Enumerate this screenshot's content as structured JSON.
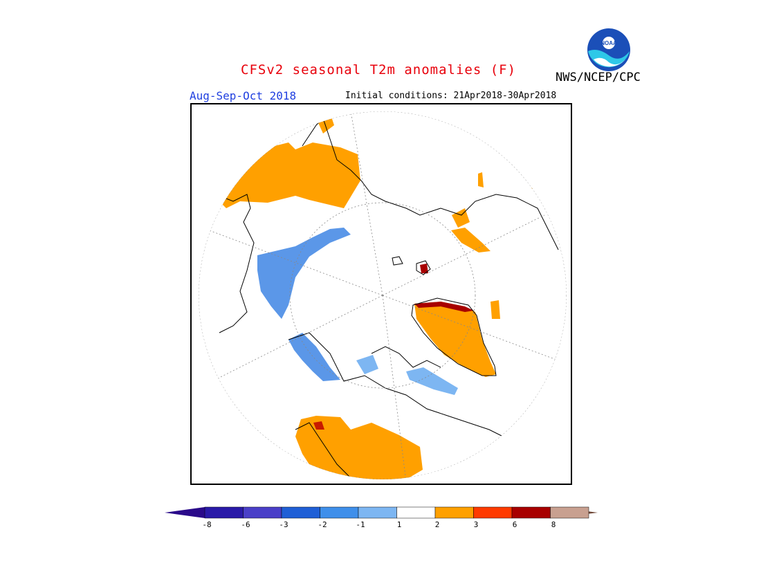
{
  "header": {
    "title": "CFSv2 seasonal T2m anomalies (F)",
    "agency": "NWS/NCEP/CPC",
    "season": "Aug-Sep-Oct 2018",
    "initial_conditions": "Initial conditions: 21Apr2018-30Apr2018",
    "logo_text": "NOAA"
  },
  "colorbar": {
    "labels": [
      "-8",
      "-6",
      "-3",
      "-2",
      "-1",
      "1",
      "2",
      "3",
      "6",
      "8"
    ],
    "colors": [
      "#2a1aa8",
      "#4a3fc8",
      "#1f5fd6",
      "#3f8fea",
      "#7db6f2",
      "#ffffff",
      "#ffa000",
      "#ff3a00",
      "#a80000",
      "#c8a090",
      "#7a4a3a"
    ],
    "below_color": "#2a0a8a",
    "above_color": "#6e4636"
  },
  "map": {
    "projection": "polar stereographic",
    "warm_color": "#ffa000",
    "cool_color": "#5b97e8",
    "hot_color": "#b01000"
  }
}
